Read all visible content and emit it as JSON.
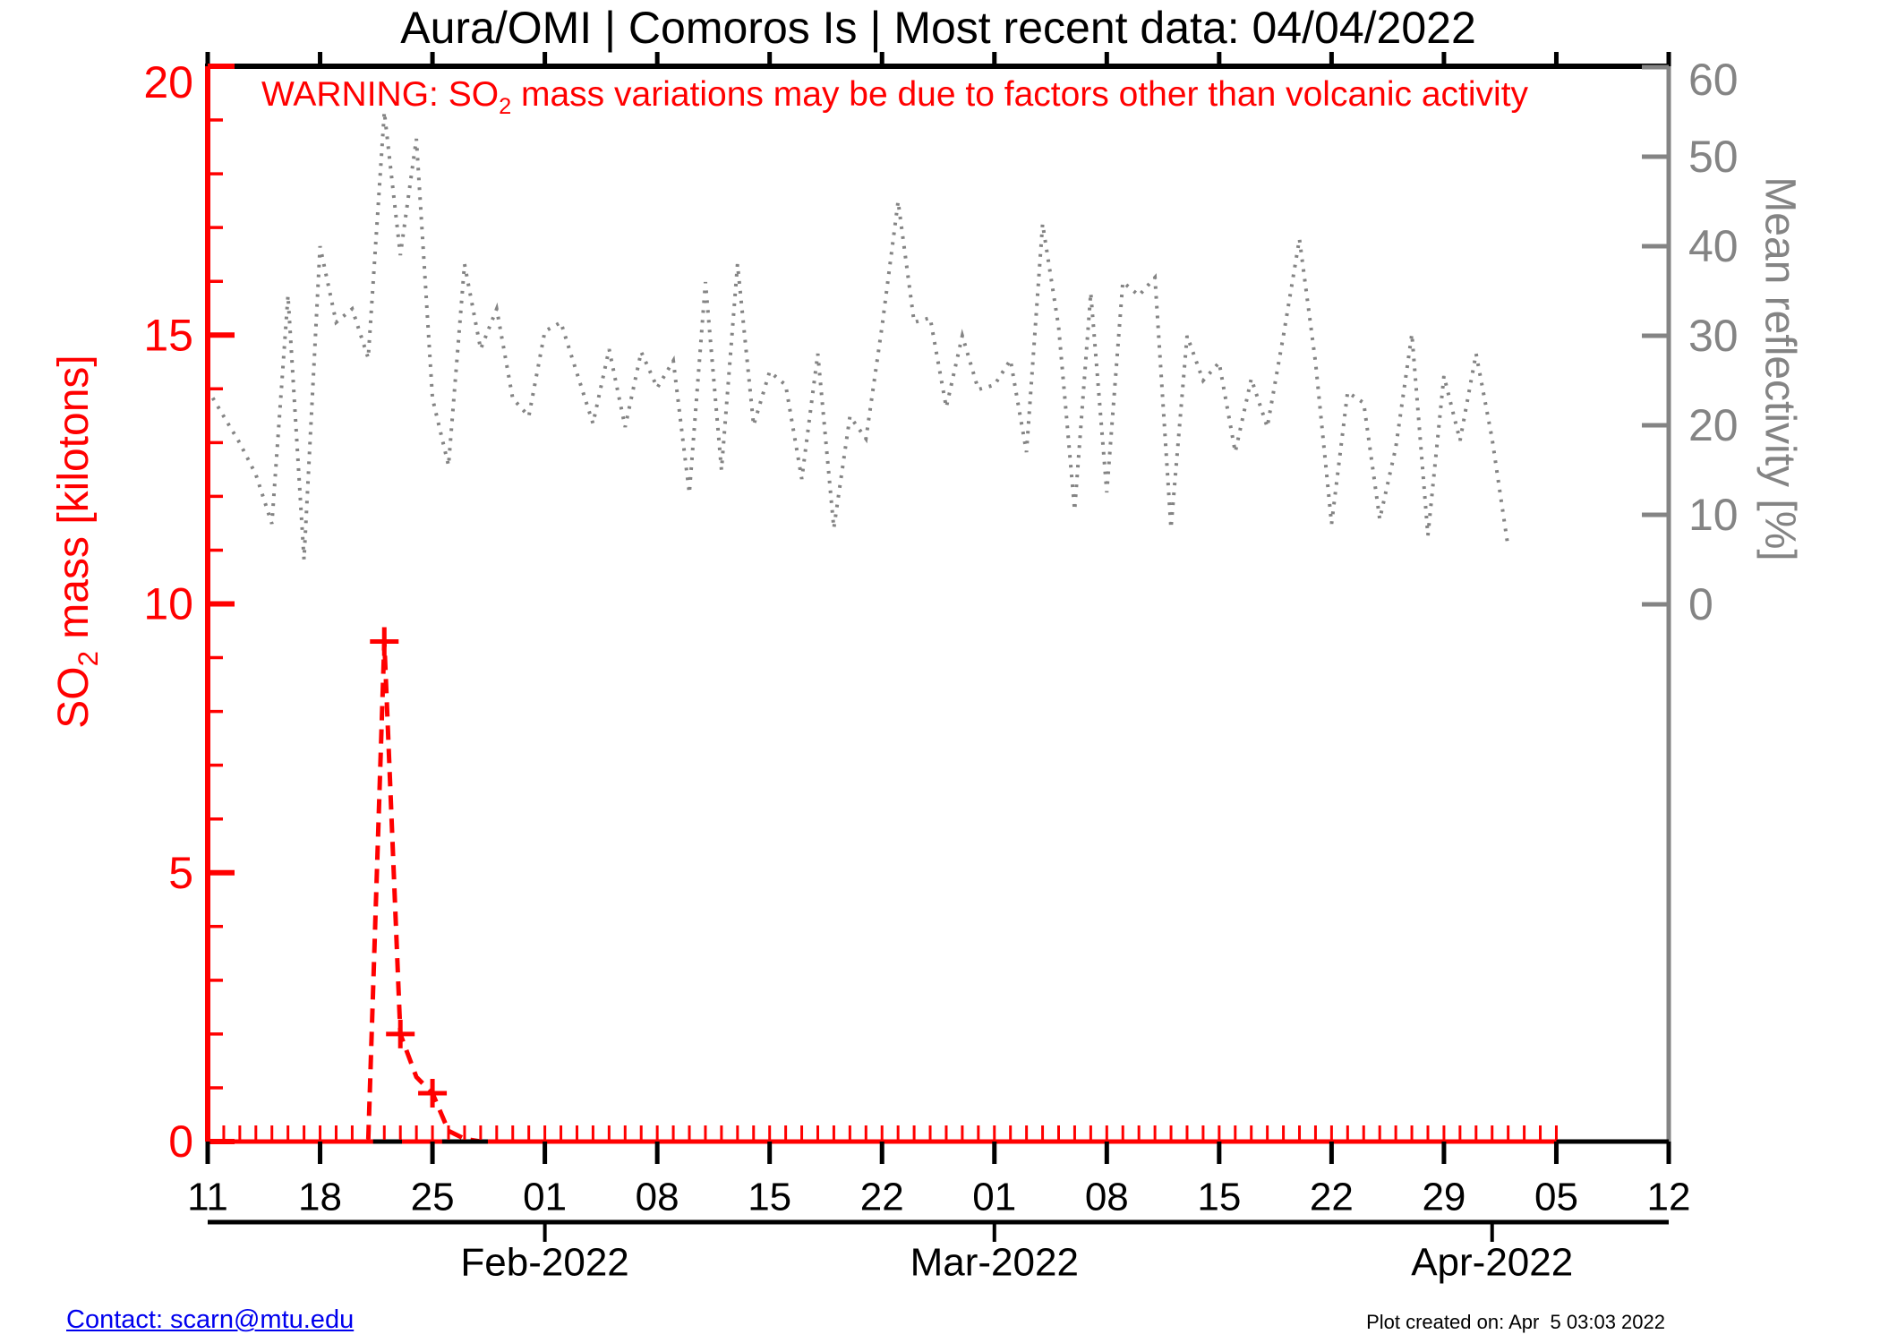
{
  "footer": {
    "contact": "Contact: scarn@mtu.edu",
    "created": "Plot created on: Apr  5 03:03 2022"
  },
  "warning": {
    "pre": "WARNING: SO",
    "sub": "2",
    "post": " mass variations may be due to factors other than volcanic activity"
  },
  "colors": {
    "so2": "#ff0000",
    "reflectivity": "#848484",
    "axis_black": "#000000",
    "link_blue": "#0000ee",
    "background": "#ffffff"
  },
  "chart_data": {
    "type": "line",
    "title": "Aura/OMI | Comoros Is | Most recent data: 04/04/2022",
    "x_axis": {
      "start_date": "2022-01-11",
      "end_date": "2022-04-12",
      "days_total": 91,
      "week_tick_step_days": 7,
      "week_tick_labels": [
        "11",
        "18",
        "25",
        "01",
        "08",
        "15",
        "22",
        "01",
        "08",
        "15",
        "22",
        "29",
        "05",
        "12"
      ],
      "month_ticks": [
        {
          "label": "Feb-2022",
          "day": 21
        },
        {
          "label": "Mar-2022",
          "day": 49
        },
        {
          "label": "Apr-2022",
          "day": 80
        }
      ],
      "red_axis_end_day": 84,
      "daily_minor_ticks": true
    },
    "y_left": {
      "label_pre": "SO",
      "label_sub": "2",
      "label_post": " mass [kilotons]",
      "min": 0,
      "max": 20,
      "major_ticks": [
        0,
        5,
        10,
        15,
        20
      ],
      "minor_step": 1,
      "color": "#ff0000"
    },
    "y_right": {
      "label": "Mean reflectivity [%]",
      "ticks": [
        0,
        10,
        20,
        30,
        40,
        50,
        60
      ],
      "color": "#848484",
      "legend_position": "right"
    },
    "grid": false,
    "series": [
      {
        "name": "Mean reflectivity [%]",
        "axis": "right",
        "color": "#848484",
        "style": "dotted",
        "start_day": 0,
        "values": [
          24,
          21,
          18,
          14.5,
          9,
          34.5,
          5,
          40,
          31.5,
          33,
          27.5,
          55,
          39,
          52,
          23,
          15.5,
          38,
          28.5,
          33,
          23,
          21,
          30.5,
          31.5,
          25.8,
          20.2,
          28.5,
          19.8,
          28.2,
          24.2,
          27.2,
          12.4,
          36,
          15,
          38,
          20,
          26,
          24.5,
          14,
          28,
          8.5,
          21,
          18.5,
          31,
          45,
          31.5,
          32,
          22,
          30,
          24,
          24.5,
          27.3,
          17,
          42.5,
          31,
          10.5,
          34.8,
          12.5,
          36,
          34.5,
          36.5,
          8.5,
          30,
          25,
          27,
          17,
          25.2,
          19.8,
          30,
          40.8,
          27,
          9,
          23.7,
          22.5,
          9.5,
          17.5,
          30.2,
          7.7,
          25.5,
          18.3,
          28,
          18.5,
          6.3
        ]
      },
      {
        "name": "SO2 mass [kilotons]",
        "axis": "left",
        "color": "#ff0000",
        "style": "dashed",
        "start_day": 0,
        "end_day": 83,
        "default_value": 0,
        "points": [
          {
            "day": 11,
            "value": 9.3
          },
          {
            "day": 12,
            "value": 2.0
          },
          {
            "day": 13,
            "value": 1.2
          },
          {
            "day": 14,
            "value": 0.9
          },
          {
            "day": 15,
            "value": 0.2
          },
          {
            "day": 16,
            "value": 0.05
          }
        ],
        "markers": [
          {
            "day": 11,
            "value": 9.3
          },
          {
            "day": 12,
            "value": 2.0
          },
          {
            "day": 14,
            "value": 0.9
          }
        ]
      }
    ]
  }
}
